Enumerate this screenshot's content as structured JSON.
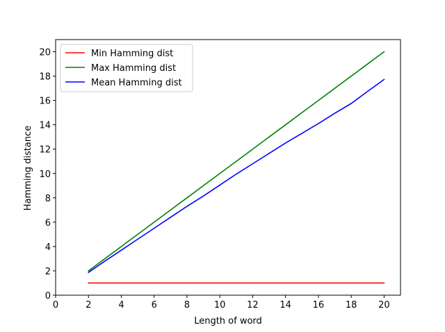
{
  "chart_data": {
    "type": "line",
    "xlabel": "Length of word",
    "ylabel": "Hamming distance",
    "xlim": [
      0,
      21
    ],
    "ylim": [
      0,
      21
    ],
    "xticks": [
      0,
      2,
      4,
      6,
      8,
      10,
      12,
      14,
      16,
      18,
      20
    ],
    "yticks": [
      0,
      2,
      4,
      6,
      8,
      10,
      12,
      14,
      16,
      18,
      20
    ],
    "grid": false,
    "legend_position": "upper-left",
    "x": [
      2,
      3,
      4,
      5,
      6,
      7,
      8,
      9,
      10,
      11,
      12,
      13,
      14,
      15,
      16,
      17,
      18,
      19,
      20
    ],
    "series": [
      {
        "name": "Min Hamming dist",
        "color": "#ff0000",
        "values": [
          1,
          1,
          1,
          1,
          1,
          1,
          1,
          1,
          1,
          1,
          1,
          1,
          1,
          1,
          1,
          1,
          1,
          1,
          1
        ]
      },
      {
        "name": "Max Hamming dist",
        "color": "#008000",
        "values": [
          2,
          3,
          4,
          5,
          6,
          7,
          8,
          9,
          10,
          11,
          12,
          13,
          14,
          15,
          16,
          17,
          18,
          19,
          20
        ]
      },
      {
        "name": "Mean Hamming dist",
        "color": "#0000ff",
        "values": [
          1.87,
          2.8,
          3.7,
          4.6,
          5.5,
          6.4,
          7.3,
          8.15,
          9.05,
          9.95,
          10.8,
          11.65,
          12.5,
          13.3,
          14.1,
          14.95,
          15.75,
          16.75,
          17.72
        ]
      }
    ]
  }
}
